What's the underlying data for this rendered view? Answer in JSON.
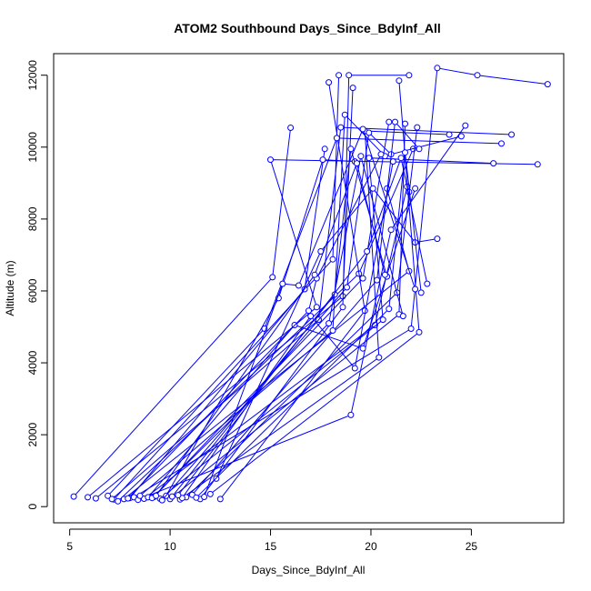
{
  "chart_data": {
    "type": "line",
    "title": "ATOM2 Southbound Days_Since_BdyInf_All",
    "xlabel": "Days_Since_BdyInf_All",
    "ylabel": "Altitude (m)",
    "xlim": [
      4.2,
      29.6
    ],
    "ylim": [
      -450,
      12600
    ],
    "xticks": [
      5,
      10,
      15,
      20,
      25
    ],
    "yticks": [
      0,
      2000,
      4000,
      6000,
      8000,
      10000,
      12000
    ],
    "grid": false,
    "legend": "none",
    "line_color": "#0000ff",
    "marker": "open-circle",
    "series": [
      {
        "values": [
          [
            5.2,
            280
          ],
          [
            15.1,
            6380
          ],
          [
            16.0,
            10540
          ]
        ]
      },
      {
        "values": [
          [
            5.9,
            260
          ],
          [
            17.3,
            5550
          ],
          [
            15.0,
            9650
          ],
          [
            28.3,
            9520
          ]
        ]
      },
      {
        "values": [
          [
            6.3,
            230
          ],
          [
            18.6,
            5850
          ],
          [
            19.1,
            11650
          ]
        ]
      },
      {
        "values": [
          [
            7.2,
            200
          ],
          [
            18.1,
            6880
          ],
          [
            18.4,
            12000
          ]
        ]
      },
      {
        "values": [
          [
            7.4,
            150
          ],
          [
            19.4,
            6480
          ],
          [
            22.1,
            9950
          ]
        ]
      },
      {
        "values": [
          [
            7.7,
            210
          ],
          [
            21.9,
            6550
          ],
          [
            20.8,
            8850
          ]
        ]
      },
      {
        "values": [
          [
            8.0,
            240
          ],
          [
            16.7,
            6050
          ],
          [
            17.7,
            9950
          ]
        ]
      },
      {
        "values": [
          [
            8.2,
            260
          ],
          [
            22.0,
            4950
          ],
          [
            23.3,
            12200
          ],
          [
            25.3,
            12000
          ],
          [
            28.8,
            11750
          ]
        ]
      },
      {
        "values": [
          [
            8.4,
            190
          ],
          [
            19.0,
            2550
          ],
          [
            21.0,
            7700
          ],
          [
            24.7,
            10600
          ]
        ]
      },
      {
        "values": [
          [
            8.7,
            220
          ],
          [
            20.2,
            5050
          ],
          [
            21.8,
            8900
          ],
          [
            21.9,
            8750
          ]
        ]
      },
      {
        "values": [
          [
            9.2,
            270
          ],
          [
            19.6,
            6350
          ],
          [
            20.9,
            10700
          ]
        ]
      },
      {
        "values": [
          [
            9.5,
            220
          ],
          [
            20.6,
            5200
          ],
          [
            19.9,
            9700
          ],
          [
            26.1,
            9550
          ]
        ]
      },
      {
        "values": [
          [
            10.0,
            210
          ],
          [
            21.4,
            5350
          ],
          [
            21.7,
            10650
          ]
        ]
      },
      {
        "values": [
          [
            10.5,
            200
          ],
          [
            20.4,
            4150
          ],
          [
            19.7,
            10450
          ],
          [
            23.9,
            10350
          ]
        ]
      },
      {
        "values": [
          [
            10.8,
            260
          ],
          [
            21.3,
            5950
          ],
          [
            22.3,
            10550
          ]
        ]
      },
      {
        "values": [
          [
            11.5,
            210
          ],
          [
            18.6,
            5550
          ],
          [
            18.9,
            12000
          ],
          [
            21.9,
            12000
          ]
        ]
      },
      {
        "values": [
          [
            12.0,
            350
          ],
          [
            22.4,
            4850
          ],
          [
            21.4,
            11850
          ]
        ]
      },
      {
        "values": [
          [
            12.5,
            210
          ],
          [
            19.7,
            5450
          ],
          [
            17.9,
            11800
          ]
        ]
      },
      {
        "values": [
          [
            9.8,
            300
          ],
          [
            15.4,
            5800
          ],
          [
            17.6,
            9650
          ],
          [
            19.2,
            9600
          ]
        ]
      },
      {
        "values": [
          [
            10.6,
            240
          ],
          [
            17.0,
            5300
          ],
          [
            19.2,
            3850
          ],
          [
            21.1,
            9600
          ]
        ]
      },
      {
        "values": [
          [
            8.9,
            260
          ],
          [
            16.2,
            5050
          ],
          [
            19.6,
            4400
          ],
          [
            22.2,
            8850
          ]
        ]
      },
      {
        "values": [
          [
            6.9,
            300
          ],
          [
            14.7,
            4950
          ],
          [
            18.3,
            10250
          ],
          [
            26.5,
            10100
          ]
        ]
      },
      {
        "values": [
          [
            7.1,
            210
          ],
          [
            17.4,
            5200
          ],
          [
            18.5,
            10550
          ],
          [
            27.0,
            10350
          ]
        ]
      },
      {
        "values": [
          [
            9.6,
            180
          ],
          [
            18.8,
            6100
          ],
          [
            19.9,
            10400
          ],
          [
            21.0,
            9800
          ],
          [
            24.5,
            10300
          ]
        ]
      },
      {
        "values": [
          [
            11.1,
            330
          ],
          [
            20.3,
            6300
          ],
          [
            21.2,
            10700
          ],
          [
            22.4,
            9950
          ]
        ]
      },
      {
        "values": [
          [
            12.3,
            780
          ],
          [
            17.5,
            7100
          ],
          [
            20.1,
            8850
          ],
          [
            22.2,
            7350
          ],
          [
            23.3,
            7450
          ]
        ]
      },
      {
        "values": [
          [
            8.5,
            300
          ],
          [
            18.1,
            4900
          ],
          [
            18.7,
            10900
          ],
          [
            20.7,
            9750
          ]
        ]
      },
      {
        "values": [
          [
            11.7,
            270
          ],
          [
            15.6,
            6200
          ],
          [
            16.4,
            6150
          ],
          [
            19.6,
            10500
          ],
          [
            22.2,
            6050
          ]
        ]
      },
      {
        "values": [
          [
            10.1,
            280
          ],
          [
            18.2,
            5900
          ],
          [
            19.0,
            9950
          ],
          [
            20.8,
            6400
          ]
        ]
      },
      {
        "values": [
          [
            9.1,
            240
          ],
          [
            17.9,
            5100
          ],
          [
            19.5,
            9750
          ],
          [
            21.6,
            5300
          ]
        ]
      },
      {
        "values": [
          [
            7.9,
            230
          ],
          [
            16.9,
            5450
          ],
          [
            17.3,
            6350
          ],
          [
            20.5,
            9800
          ]
        ]
      },
      {
        "values": [
          [
            11.3,
            250
          ],
          [
            20.9,
            5500
          ],
          [
            21.7,
            9850
          ],
          [
            22.5,
            5950
          ]
        ]
      },
      {
        "values": [
          [
            9.3,
            300
          ],
          [
            17.2,
            6450
          ],
          [
            19.3,
            9550
          ],
          [
            20.7,
            6450
          ]
        ]
      },
      {
        "values": [
          [
            10.4,
            320
          ],
          [
            19.8,
            7100
          ],
          [
            21.5,
            9700
          ],
          [
            22.8,
            6200
          ]
        ]
      }
    ]
  }
}
